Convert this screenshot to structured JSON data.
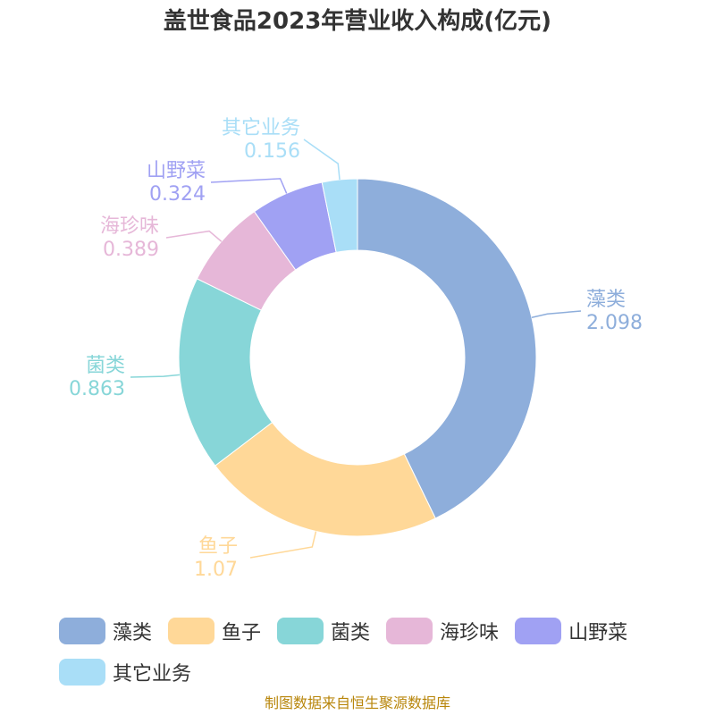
{
  "chart_data": {
    "type": "pie",
    "title": "盖世食品2023年营业收入构成(亿元)",
    "categories": [
      "藻类",
      "鱼子",
      "菌类",
      "海珍味",
      "山野菜",
      "其它业务"
    ],
    "values": [
      2.098,
      1.07,
      0.863,
      0.389,
      0.324,
      0.156
    ],
    "value_labels": [
      "2.098",
      "1.07",
      "0.863",
      "0.389",
      "0.324",
      "0.156"
    ],
    "colors": [
      "#8eaedb",
      "#ffd898",
      "#87d6d8",
      "#e6b7d8",
      "#a0a1f3",
      "#a9def7"
    ],
    "legend_placement": "bottom"
  },
  "source": "制图数据来自恒生聚源数据库"
}
